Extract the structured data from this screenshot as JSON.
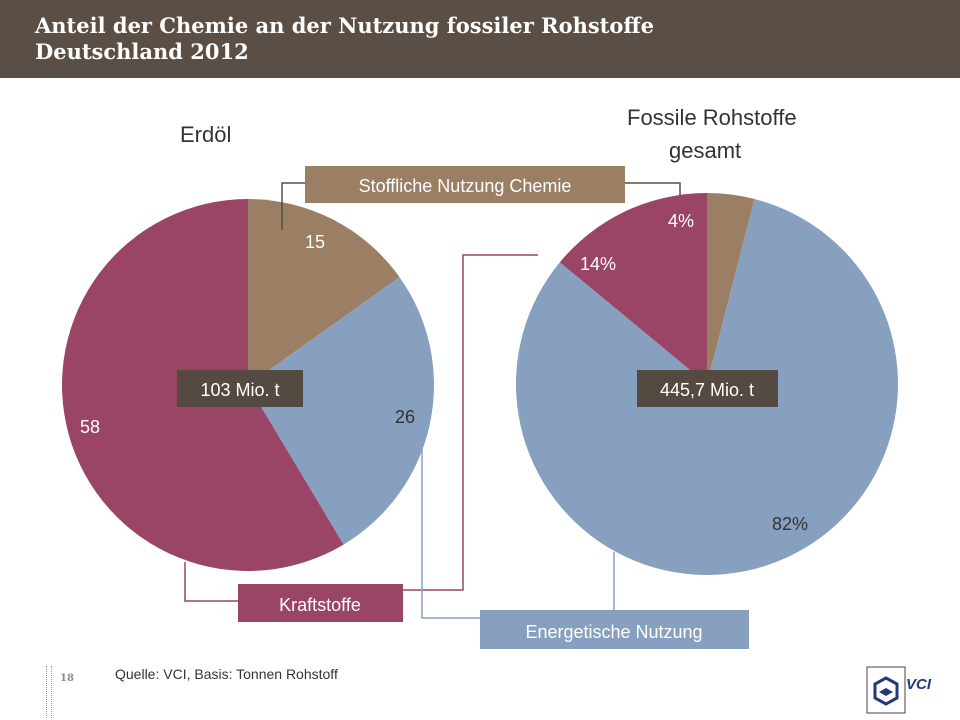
{
  "header": {
    "title_line1": "Anteil der Chemie an der Nutzung fossiler Rohstoffe",
    "title_line2": "Deutschland 2012"
  },
  "colors": {
    "header_bg": "#5b4f45",
    "stofflich": "#9a7f65",
    "energetisch": "#87a0bf",
    "kraftstoffe": "#9a4565",
    "total_box": "#544a42"
  },
  "chart_data": [
    {
      "type": "pie",
      "title": "Erdöl",
      "total_label": "103 Mio. t",
      "categories": [
        "Stoffliche Nutzung Chemie",
        "Energetische Nutzung",
        "Kraftstoffe"
      ],
      "values": [
        15,
        26,
        58
      ],
      "data_labels": [
        "15",
        "26",
        "58"
      ]
    },
    {
      "type": "pie",
      "title_line1": "Fossile Rohstoffe",
      "title_line2": "gesamt",
      "total_label": "445,7 Mio. t",
      "categories": [
        "Stoffliche Nutzung Chemie",
        "Energetische Nutzung",
        "Kraftstoffe"
      ],
      "values": [
        4,
        82,
        14
      ],
      "data_labels": [
        "4%",
        "82%",
        "14%"
      ]
    }
  ],
  "legend": {
    "stofflich": "Stoffliche Nutzung Chemie",
    "kraftstoffe": "Kraftstoffe",
    "energetisch": "Energetische Nutzung"
  },
  "footer": {
    "source": "Quelle: VCI, Basis: Tonnen Rohstoff",
    "page_number": "18",
    "logo_text": "VCI"
  }
}
